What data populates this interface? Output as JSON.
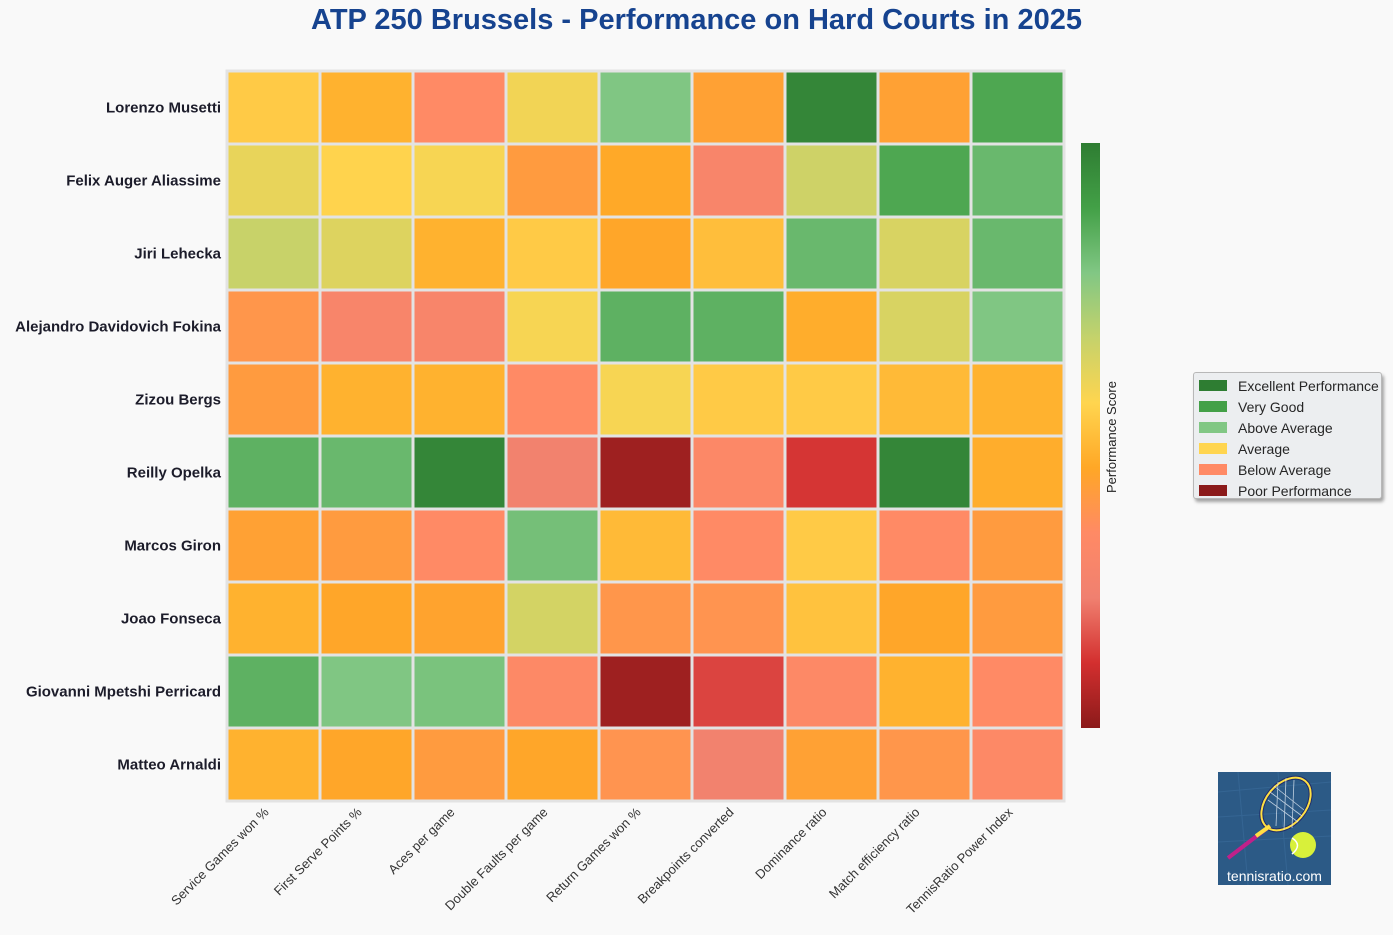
{
  "chart_data": {
    "type": "heatmap",
    "title": "ATP 250 Brussels - Performance on Hard Courts in 2025",
    "rows": [
      "Lorenzo Musetti",
      "Felix Auger Aliassime",
      "Jiri Lehecka",
      "Alejandro Davidovich Fokina",
      "Zizou Bergs",
      "Reilly Opelka",
      "Marcos Giron",
      "Joao Fonseca",
      "Giovanni Mpetshi Perricard",
      "Matteo Arnaldi"
    ],
    "columns": [
      "Service Games won %",
      "First Serve Points %",
      "Aces per game",
      "Double Faults per game",
      "Return Games won %",
      "Breakpoints converted",
      "Dominance ratio",
      "Match efficiency ratio",
      "TennisRatio Power Index"
    ],
    "values": [
      [
        0.53,
        0.47,
        0.33,
        0.58,
        0.78,
        0.42,
        0.97,
        0.42,
        0.87
      ],
      [
        0.6,
        0.55,
        0.57,
        0.4,
        0.45,
        0.28,
        0.65,
        0.87,
        0.82
      ],
      [
        0.66,
        0.62,
        0.47,
        0.53,
        0.44,
        0.5,
        0.82,
        0.63,
        0.82
      ],
      [
        0.38,
        0.28,
        0.28,
        0.57,
        0.84,
        0.84,
        0.46,
        0.63,
        0.78
      ],
      [
        0.4,
        0.47,
        0.47,
        0.33,
        0.57,
        0.53,
        0.53,
        0.49,
        0.47
      ],
      [
        0.84,
        0.82,
        0.97,
        0.24,
        0.03,
        0.31,
        0.12,
        0.97,
        0.46
      ],
      [
        0.42,
        0.4,
        0.33,
        0.8,
        0.49,
        0.33,
        0.53,
        0.33,
        0.4
      ],
      [
        0.47,
        0.44,
        0.43,
        0.64,
        0.38,
        0.37,
        0.51,
        0.44,
        0.4
      ],
      [
        0.84,
        0.78,
        0.79,
        0.32,
        0.03,
        0.14,
        0.32,
        0.47,
        0.33
      ],
      [
        0.47,
        0.44,
        0.4,
        0.44,
        0.37,
        0.24,
        0.42,
        0.38,
        0.32
      ]
    ],
    "colorbar": {
      "label": "Performance Score",
      "range": [
        0,
        1
      ],
      "colors": [
        "#8b1a1a",
        "#d32f2f",
        "#f08070",
        "#ff8a65",
        "#ffa726",
        "#ffd54f",
        "#c5d26b",
        "#81c784",
        "#43a047",
        "#2e7d32"
      ]
    },
    "legend": {
      "placement": "right",
      "items": [
        {
          "label": "Excellent Performance",
          "color": "#2e7d32"
        },
        {
          "label": "Very Good",
          "color": "#43a047"
        },
        {
          "label": "Above Average",
          "color": "#81c784"
        },
        {
          "label": "Average",
          "color": "#ffd54f"
        },
        {
          "label": "Below Average",
          "color": "#ff8a65"
        },
        {
          "label": "Poor Performance",
          "color": "#8b1a1a"
        }
      ]
    }
  },
  "logo": {
    "text": "tennisratio.com",
    "icon": "tennis-racket-ball-icon"
  }
}
